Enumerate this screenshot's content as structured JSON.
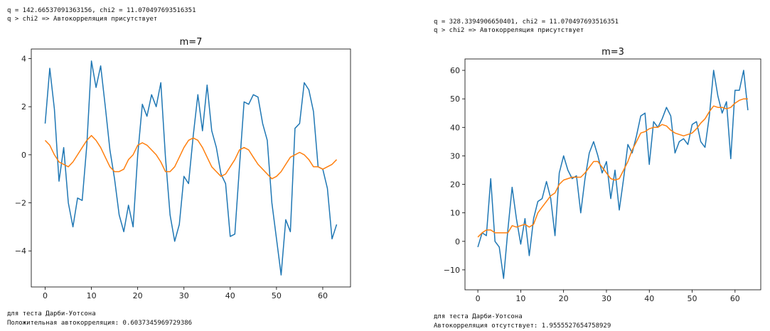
{
  "left": {
    "text_top": [
      "q = 142.66537091363156, chi2 = 11.070497693516351",
      "q > chi2 => Автокорреляция присутствует"
    ],
    "text_bottom": [
      "для теста Дарби-Уотсона",
      "Положительная автокорреляция: 0.6037345969729386"
    ]
  },
  "right": {
    "text_top": [
      "q = 328.3394906650401, chi2 = 11.070497693516351",
      "q > chi2 => Автокорреляция присутствует"
    ],
    "text_bottom": [
      "для теста Дарби-Уотсона",
      "Автокорреляция отсутствует: 1.9555527654758929"
    ]
  },
  "chart_data": [
    {
      "type": "line",
      "title": "m=7",
      "xlim": [
        -3,
        66
      ],
      "ylim": [
        -5.5,
        4.4
      ],
      "xticks": [
        0,
        10,
        20,
        30,
        40,
        50,
        60
      ],
      "yticks": [
        -4,
        -2,
        0,
        2,
        4
      ],
      "colors": [
        "#1f77b4",
        "#ff7f0e"
      ],
      "series": [
        {
          "values": [
            1.3,
            3.6,
            1.9,
            -1.1,
            0.3,
            -2.0,
            -3.0,
            -1.8,
            -1.9,
            0.4,
            3.9,
            2.8,
            3.7,
            2.0,
            0.2,
            -1.0,
            -2.5,
            -3.2,
            -2.1,
            -3.0,
            0.0,
            2.1,
            1.6,
            2.5,
            2.0,
            3.0,
            -0.1,
            -2.5,
            -3.6,
            -2.9,
            -0.9,
            -1.2,
            0.8,
            2.5,
            1.0,
            2.9,
            1.0,
            0.3,
            -0.8,
            -1.2,
            -3.4,
            -3.3,
            -0.5,
            2.2,
            2.1,
            2.5,
            2.4,
            1.3,
            0.6,
            -2.0,
            -3.5,
            -5.0,
            -2.7,
            -3.2,
            1.1,
            1.3,
            3.0,
            2.7,
            1.8,
            -0.5,
            -0.6,
            -1.4,
            -3.5,
            -2.9
          ]
        },
        {
          "values": [
            0.6,
            0.4,
            0.0,
            -0.3,
            -0.4,
            -0.5,
            -0.3,
            0.0,
            0.3,
            0.6,
            0.8,
            0.6,
            0.3,
            -0.1,
            -0.5,
            -0.7,
            -0.7,
            -0.6,
            -0.2,
            0.0,
            0.4,
            0.5,
            0.4,
            0.2,
            0.0,
            -0.3,
            -0.7,
            -0.7,
            -0.5,
            -0.1,
            0.3,
            0.6,
            0.7,
            0.6,
            0.3,
            -0.1,
            -0.5,
            -0.7,
            -0.9,
            -0.8,
            -0.5,
            -0.2,
            0.2,
            0.3,
            0.2,
            -0.1,
            -0.4,
            -0.6,
            -0.8,
            -1.0,
            -0.9,
            -0.7,
            -0.4,
            -0.1,
            0.0,
            0.1,
            0.0,
            -0.2,
            -0.5,
            -0.5,
            -0.6,
            -0.5,
            -0.4,
            -0.2
          ]
        }
      ]
    },
    {
      "type": "line",
      "title": "m=3",
      "xlim": [
        -3,
        66
      ],
      "ylim": [
        -17,
        64
      ],
      "xticks": [
        0,
        10,
        20,
        30,
        40,
        50,
        60
      ],
      "yticks": [
        -10,
        0,
        10,
        20,
        30,
        40,
        50,
        60
      ],
      "colors": [
        "#1f77b4",
        "#ff7f0e"
      ],
      "series": [
        {
          "values": [
            -2,
            3,
            2,
            22,
            0,
            -2,
            -13,
            4,
            19,
            8,
            -1,
            8,
            -5,
            8,
            14,
            15,
            21,
            15,
            2,
            24,
            30,
            25,
            22,
            23,
            10,
            22,
            31,
            35,
            30,
            24,
            28,
            15,
            25,
            11,
            22,
            34,
            31,
            37,
            44,
            45,
            27,
            42,
            40,
            43,
            47,
            44,
            31,
            35,
            36,
            34,
            41,
            42,
            35,
            33,
            44,
            60,
            51,
            45,
            49,
            29,
            53,
            53,
            60,
            46
          ]
        },
        {
          "values": [
            1.5,
            3,
            4,
            4,
            3,
            3,
            3,
            3,
            5.5,
            5,
            5.5,
            6,
            5,
            6,
            10,
            12,
            14,
            16,
            17,
            20,
            21.5,
            22,
            22.5,
            22.5,
            22.5,
            24,
            26,
            28,
            28,
            26,
            24,
            22,
            21.5,
            22,
            25,
            28,
            32,
            35,
            38,
            38.5,
            39.5,
            40,
            40,
            41,
            40.5,
            39,
            38,
            37.5,
            37,
            37.5,
            38,
            39.5,
            41.5,
            43,
            45.5,
            47.5,
            47,
            47,
            46.5,
            47,
            48.5,
            49.5,
            50,
            50
          ]
        }
      ]
    }
  ]
}
